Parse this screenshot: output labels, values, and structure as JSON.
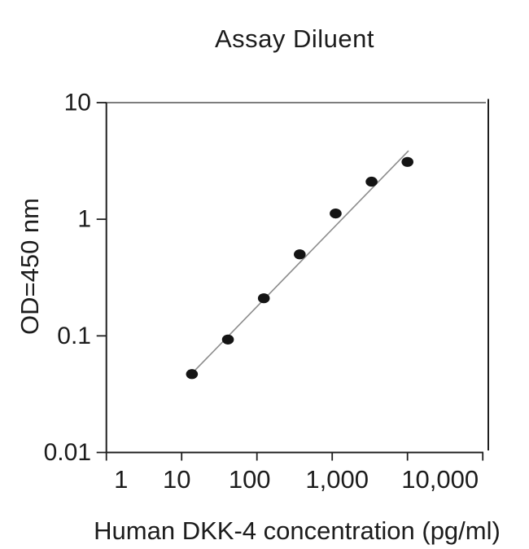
{
  "chart_data": {
    "type": "scatter",
    "title": "Assay Diluent",
    "xlabel": "Human DKK-4 concentration (pg/ml)",
    "ylabel": "OD=450 nm",
    "xscale": "log",
    "yscale": "log",
    "xlim": [
      1,
      100000
    ],
    "ylim": [
      0.01,
      10
    ],
    "grid": false,
    "legend": "none",
    "x_ticks": [
      {
        "value": 1,
        "label": "1",
        "label_dx": 18
      },
      {
        "value": 10,
        "label": "10",
        "label_dx": -6
      },
      {
        "value": 100,
        "label": "100",
        "label_dx": -9
      },
      {
        "value": 1000,
        "label": "1,000",
        "label_dx": 6
      },
      {
        "value": 10000,
        "label": "10,000",
        "label_dx": 40
      },
      {
        "value": 100000,
        "label": "",
        "label_dx": 0
      }
    ],
    "y_ticks": [
      {
        "value": 10,
        "label": "10"
      },
      {
        "value": 1,
        "label": "1"
      },
      {
        "value": 0.1,
        "label": "0.1"
      },
      {
        "value": 0.01,
        "label": "0.01"
      }
    ],
    "series": [
      {
        "name": "standard-curve-points",
        "type": "scatter",
        "x": [
          13.7,
          41.2,
          123.5,
          370.4,
          1111.1,
          3333.3,
          10000
        ],
        "y": [
          0.047,
          0.093,
          0.21,
          0.5,
          1.12,
          2.1,
          3.1
        ]
      }
    ],
    "trend_line": {
      "x1": 15.2,
      "y1": 0.051,
      "x2": 10330,
      "y2": 3.87
    },
    "colors": {
      "point": "#141414",
      "trend_line": "#8c8c8c",
      "axis": "#1f1f1f",
      "top_frame": "#7d7d7d",
      "text": "#1c1c1c",
      "background": "#ffffff"
    }
  }
}
